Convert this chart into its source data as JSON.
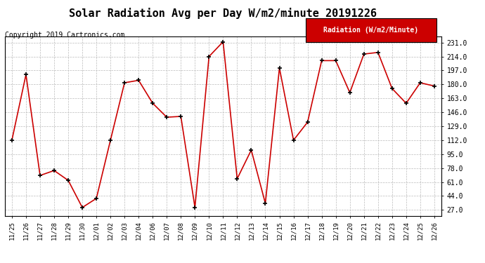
{
  "title": "Solar Radiation Avg per Day W/m2/minute 20191226",
  "copyright": "Copyright 2019 Cartronics.com",
  "legend_label": "Radiation (W/m2/Minute)",
  "dates": [
    "11/25",
    "11/26",
    "11/27",
    "11/28",
    "11/29",
    "11/30",
    "12/01",
    "12/02",
    "12/03",
    "12/04",
    "12/06",
    "12/07",
    "12/08",
    "12/09",
    "12/10",
    "12/11",
    "12/12",
    "12/13",
    "12/14",
    "12/15",
    "12/16",
    "12/17",
    "12/18",
    "12/19",
    "12/20",
    "12/21",
    "12/22",
    "12/23",
    "12/24",
    "12/25",
    "12/26"
  ],
  "values": [
    112,
    192,
    69,
    75,
    63,
    30,
    41,
    112,
    182,
    185,
    157,
    140,
    141,
    30,
    214,
    232,
    65,
    100,
    35,
    200,
    112,
    134,
    209,
    209,
    170,
    217,
    219,
    175,
    157,
    182,
    178
  ],
  "y_ticks": [
    27.0,
    44.0,
    61.0,
    78.0,
    95.0,
    112.0,
    129.0,
    146.0,
    163.0,
    180.0,
    197.0,
    214.0,
    231.0
  ],
  "ylim": [
    20,
    238
  ],
  "line_color": "#cc0000",
  "marker_color": "#000000",
  "bg_color": "#ffffff",
  "grid_color": "#bbbbbb",
  "title_fontsize": 11,
  "copyright_fontsize": 7,
  "legend_bg": "#cc0000",
  "legend_text_color": "#ffffff"
}
